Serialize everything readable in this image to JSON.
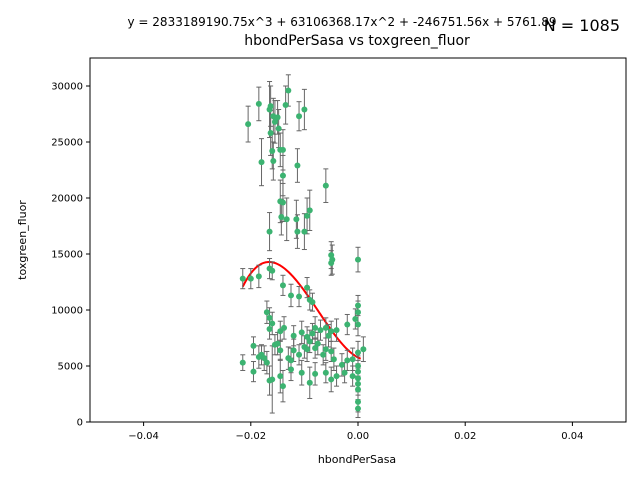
{
  "chart_data": {
    "type": "scatter",
    "title": "hbondPerSasa vs toxgreen_fluor",
    "equation": "y = 2833189190.75x^3 + 63106368.17x^2 + -246751.56x + 5761.89",
    "n_label": "N = 1085",
    "xlabel": "hbondPerSasa",
    "ylabel": "toxgreen_fluor",
    "xlim": [
      -0.05,
      0.05
    ],
    "ylim": [
      0,
      32500
    ],
    "xticks": [
      -0.04,
      -0.02,
      0.0,
      0.02,
      0.04
    ],
    "xtick_labels": [
      "−0.04",
      "−0.02",
      "0.00",
      "0.02",
      "0.04"
    ],
    "yticks": [
      0,
      5000,
      10000,
      15000,
      20000,
      25000,
      30000
    ],
    "ytick_labels": [
      "0",
      "5000",
      "10000",
      "15000",
      "20000",
      "25000",
      "30000"
    ],
    "grid": false,
    "colors": {
      "points": "#3cb371",
      "errorbars": "#666666",
      "fit": "#ff0000"
    },
    "fit": {
      "coefficients": [
        2833189190.75,
        63106368.17,
        -246751.56,
        5761.89
      ],
      "x_range": [
        -0.0215,
        0.0005
      ]
    },
    "points": [
      {
        "x": -0.0205,
        "y": 26600,
        "err": 1600
      },
      {
        "x": -0.0185,
        "y": 28400,
        "err": 1500
      },
      {
        "x": -0.0165,
        "y": 27900,
        "err": 2500
      },
      {
        "x": -0.0163,
        "y": 28200,
        "err": 1800
      },
      {
        "x": -0.0158,
        "y": 27300,
        "err": 1600
      },
      {
        "x": -0.0155,
        "y": 26800,
        "err": 1900
      },
      {
        "x": -0.015,
        "y": 27200,
        "err": 1500
      },
      {
        "x": -0.0148,
        "y": 26200,
        "err": 1700
      },
      {
        "x": -0.0145,
        "y": 24300,
        "err": 1500
      },
      {
        "x": -0.014,
        "y": 24300,
        "err": 1800
      },
      {
        "x": -0.0135,
        "y": 28300,
        "err": 1700
      },
      {
        "x": -0.013,
        "y": 29600,
        "err": 1400
      },
      {
        "x": -0.0163,
        "y": 25800,
        "err": 2000
      },
      {
        "x": -0.016,
        "y": 24200,
        "err": 1600
      },
      {
        "x": -0.0158,
        "y": 23300,
        "err": 1700
      },
      {
        "x": -0.018,
        "y": 23200,
        "err": 2100
      },
      {
        "x": -0.011,
        "y": 27300,
        "err": 1300
      },
      {
        "x": -0.01,
        "y": 27900,
        "err": 1800
      },
      {
        "x": -0.0113,
        "y": 22900,
        "err": 1500
      },
      {
        "x": -0.0145,
        "y": 19700,
        "err": 1900
      },
      {
        "x": -0.014,
        "y": 19600,
        "err": 1700
      },
      {
        "x": -0.0143,
        "y": 18300,
        "err": 1600
      },
      {
        "x": -0.0133,
        "y": 18100,
        "err": 1900
      },
      {
        "x": -0.0115,
        "y": 18100,
        "err": 1700
      },
      {
        "x": -0.0095,
        "y": 18400,
        "err": 1600
      },
      {
        "x": -0.009,
        "y": 18900,
        "err": 1800
      },
      {
        "x": -0.006,
        "y": 21100,
        "err": 1500
      },
      {
        "x": -0.0165,
        "y": 17000,
        "err": 1700
      },
      {
        "x": -0.0113,
        "y": 17000,
        "err": 1500
      },
      {
        "x": -0.01,
        "y": 17000,
        "err": 1600
      },
      {
        "x": -0.014,
        "y": 22000,
        "err": 1800
      },
      {
        "x": -0.005,
        "y": 14900,
        "err": 1200
      },
      {
        "x": -0.0048,
        "y": 14500,
        "err": 1300
      },
      {
        "x": -0.005,
        "y": 14200,
        "err": 1100
      },
      {
        "x": 0.0,
        "y": 14500,
        "err": 1100
      },
      {
        "x": -0.0215,
        "y": 12800,
        "err": 900
      },
      {
        "x": -0.02,
        "y": 12800,
        "err": 900
      },
      {
        "x": -0.0185,
        "y": 13000,
        "err": 1000
      },
      {
        "x": -0.0165,
        "y": 13700,
        "err": 900
      },
      {
        "x": -0.016,
        "y": 13500,
        "err": 800
      },
      {
        "x": -0.014,
        "y": 12200,
        "err": 900
      },
      {
        "x": -0.0125,
        "y": 11300,
        "err": 1000
      },
      {
        "x": -0.011,
        "y": 11200,
        "err": 900
      },
      {
        "x": -0.009,
        "y": 10900,
        "err": 900
      },
      {
        "x": -0.0085,
        "y": 10700,
        "err": 800
      },
      {
        "x": -0.0095,
        "y": 12000,
        "err": 900
      },
      {
        "x": -0.017,
        "y": 9800,
        "err": 1000
      },
      {
        "x": -0.0165,
        "y": 9300,
        "err": 900
      },
      {
        "x": -0.016,
        "y": 8800,
        "err": 1000
      },
      {
        "x": -0.0165,
        "y": 8300,
        "err": 900
      },
      {
        "x": -0.0145,
        "y": 8100,
        "err": 900
      },
      {
        "x": -0.0138,
        "y": 8400,
        "err": 1000
      },
      {
        "x": -0.012,
        "y": 7700,
        "err": 900
      },
      {
        "x": -0.0105,
        "y": 8000,
        "err": 1000
      },
      {
        "x": -0.0095,
        "y": 7600,
        "err": 900
      },
      {
        "x": -0.0085,
        "y": 7900,
        "err": 900
      },
      {
        "x": -0.008,
        "y": 8400,
        "err": 1000
      },
      {
        "x": -0.007,
        "y": 8200,
        "err": 900
      },
      {
        "x": -0.006,
        "y": 8400,
        "err": 900
      },
      {
        "x": -0.0055,
        "y": 7700,
        "err": 1000
      },
      {
        "x": -0.005,
        "y": 8100,
        "err": 900
      },
      {
        "x": -0.004,
        "y": 8200,
        "err": 1000
      },
      {
        "x": -0.002,
        "y": 8700,
        "err": 900
      },
      {
        "x": 0.0,
        "y": 10400,
        "err": 900
      },
      {
        "x": 0.0,
        "y": 9800,
        "err": 1000
      },
      {
        "x": -0.0005,
        "y": 9200,
        "err": 900
      },
      {
        "x": 0.0,
        "y": 8700,
        "err": 1000
      },
      {
        "x": -0.0195,
        "y": 6800,
        "err": 800
      },
      {
        "x": -0.0185,
        "y": 5800,
        "err": 1000
      },
      {
        "x": -0.018,
        "y": 6000,
        "err": 900
      },
      {
        "x": -0.0175,
        "y": 5700,
        "err": 1100
      },
      {
        "x": -0.017,
        "y": 5300,
        "err": 1000
      },
      {
        "x": -0.0155,
        "y": 6900,
        "err": 900
      },
      {
        "x": -0.015,
        "y": 7000,
        "err": 1000
      },
      {
        "x": -0.0145,
        "y": 6400,
        "err": 900
      },
      {
        "x": -0.013,
        "y": 5700,
        "err": 1000
      },
      {
        "x": -0.0125,
        "y": 5500,
        "err": 1100
      },
      {
        "x": -0.012,
        "y": 6400,
        "err": 1000
      },
      {
        "x": -0.011,
        "y": 6000,
        "err": 900
      },
      {
        "x": -0.01,
        "y": 6700,
        "err": 1000
      },
      {
        "x": -0.0095,
        "y": 6500,
        "err": 1100
      },
      {
        "x": -0.009,
        "y": 7200,
        "err": 1000
      },
      {
        "x": -0.008,
        "y": 6600,
        "err": 900
      },
      {
        "x": -0.0075,
        "y": 7000,
        "err": 1000
      },
      {
        "x": -0.0065,
        "y": 6000,
        "err": 900
      },
      {
        "x": -0.006,
        "y": 6500,
        "err": 1000
      },
      {
        "x": -0.005,
        "y": 6300,
        "err": 900
      },
      {
        "x": -0.0045,
        "y": 5600,
        "err": 1000
      },
      {
        "x": -0.003,
        "y": 5100,
        "err": 1000
      },
      {
        "x": -0.002,
        "y": 5500,
        "err": 900
      },
      {
        "x": -0.001,
        "y": 5600,
        "err": 1000
      },
      {
        "x": 0.0,
        "y": 6200,
        "err": 1000
      },
      {
        "x": 0.0,
        "y": 5000,
        "err": 900
      },
      {
        "x": 0.0,
        "y": 4500,
        "err": 1000
      },
      {
        "x": 0.001,
        "y": 6500,
        "err": 1100
      },
      {
        "x": -0.0215,
        "y": 5300,
        "err": 700
      },
      {
        "x": -0.0195,
        "y": 4500,
        "err": 900
      },
      {
        "x": -0.0165,
        "y": 3700,
        "err": 1300
      },
      {
        "x": -0.016,
        "y": 3800,
        "err": 3000
      },
      {
        "x": -0.0145,
        "y": 4100,
        "err": 1500
      },
      {
        "x": -0.014,
        "y": 3200,
        "err": 1400
      },
      {
        "x": -0.0125,
        "y": 4700,
        "err": 1000
      },
      {
        "x": -0.0105,
        "y": 4400,
        "err": 1100
      },
      {
        "x": -0.009,
        "y": 3500,
        "err": 1400
      },
      {
        "x": -0.008,
        "y": 4300,
        "err": 1000
      },
      {
        "x": -0.006,
        "y": 4400,
        "err": 900
      },
      {
        "x": -0.005,
        "y": 3800,
        "err": 1100
      },
      {
        "x": -0.004,
        "y": 4100,
        "err": 900
      },
      {
        "x": -0.0025,
        "y": 4400,
        "err": 900
      },
      {
        "x": -0.001,
        "y": 4100,
        "err": 900
      },
      {
        "x": 0.0,
        "y": 3900,
        "err": 900
      },
      {
        "x": 0.0,
        "y": 3400,
        "err": 1000
      },
      {
        "x": 0.0,
        "y": 2900,
        "err": 1100
      },
      {
        "x": 0.0,
        "y": 1800,
        "err": 900
      },
      {
        "x": 0.0,
        "y": 1200,
        "err": 800
      }
    ]
  }
}
